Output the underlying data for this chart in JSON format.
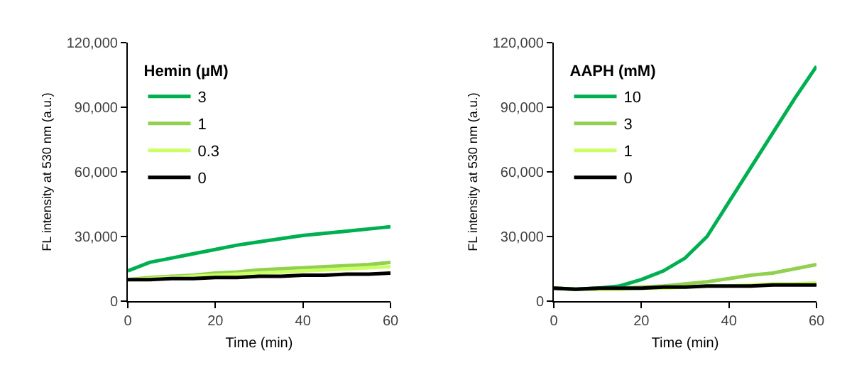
{
  "chart_data": [
    {
      "type": "line",
      "xlabel": "Time (min)",
      "ylabel": "FL intensity at 530 nm (a.u.)",
      "legend_title": "Hemin (µM)",
      "legend": "top left",
      "grid": false,
      "marker": "none",
      "line_style": "solid",
      "x": [
        0,
        5,
        10,
        15,
        20,
        25,
        30,
        35,
        40,
        45,
        50,
        55,
        60
      ],
      "xlim": [
        0,
        60
      ],
      "xticks": [
        0,
        20,
        40,
        60
      ],
      "ylim": [
        0,
        120000
      ],
      "yticks": [
        0,
        {
          "value": 30000,
          "label": "30,000"
        },
        {
          "value": 60000,
          "label": "60,000"
        },
        {
          "value": 90000,
          "label": "90,000"
        },
        {
          "value": 120000,
          "label": "120,000"
        }
      ],
      "series": [
        {
          "name": "3",
          "color": "#00b050",
          "values": [
            14000,
            18000,
            20000,
            22000,
            24000,
            26000,
            27500,
            29000,
            30500,
            31500,
            32500,
            33500,
            34500
          ]
        },
        {
          "name": "1",
          "color": "#92d050",
          "values": [
            10000,
            11000,
            11500,
            12000,
            13000,
            13500,
            14500,
            15000,
            15500,
            16000,
            16500,
            17000,
            18000
          ]
        },
        {
          "name": "0.3",
          "color": "#ccff66",
          "values": [
            10000,
            10500,
            11000,
            11500,
            12000,
            12500,
            13000,
            13500,
            14000,
            14500,
            15000,
            15500,
            16000
          ]
        },
        {
          "name": "0",
          "color": "#000000",
          "values": [
            10000,
            10000,
            10500,
            10500,
            11000,
            11000,
            11500,
            11500,
            12000,
            12000,
            12500,
            12500,
            13000
          ]
        }
      ]
    },
    {
      "type": "line",
      "xlabel": "Time (min)",
      "ylabel": "FL intensity at 530 nm (a.u.)",
      "legend_title": "AAPH (mM)",
      "legend": "top left",
      "grid": false,
      "marker": "none",
      "line_style": "solid",
      "x": [
        0,
        5,
        10,
        15,
        20,
        25,
        30,
        35,
        40,
        45,
        50,
        55,
        60
      ],
      "xlim": [
        0,
        60
      ],
      "xticks": [
        0,
        20,
        40,
        60
      ],
      "ylim": [
        0,
        120000
      ],
      "yticks": [
        0,
        {
          "value": 30000,
          "label": "30,000"
        },
        {
          "value": 60000,
          "label": "60,000"
        },
        {
          "value": 90000,
          "label": "90,000"
        },
        {
          "value": 120000,
          "label": "120,000"
        }
      ],
      "series": [
        {
          "name": "10",
          "color": "#00b050",
          "values": [
            6000,
            5500,
            6000,
            7000,
            10000,
            14000,
            20000,
            30000,
            46000,
            62000,
            78000,
            94000,
            109000
          ]
        },
        {
          "name": "3",
          "color": "#92d050",
          "values": [
            6000,
            5500,
            5500,
            6000,
            6500,
            7000,
            8000,
            9000,
            10500,
            12000,
            13000,
            15000,
            17000
          ]
        },
        {
          "name": "1",
          "color": "#ccff66",
          "values": [
            null,
            null,
            5500,
            5500,
            6000,
            6000,
            6500,
            7000,
            7000,
            7500,
            8000,
            8000,
            8500
          ]
        },
        {
          "name": "0",
          "color": "#000000",
          "values": [
            6000,
            5500,
            6000,
            6000,
            6000,
            6500,
            6500,
            7000,
            7000,
            7000,
            7500,
            7500,
            7500
          ]
        }
      ]
    }
  ]
}
